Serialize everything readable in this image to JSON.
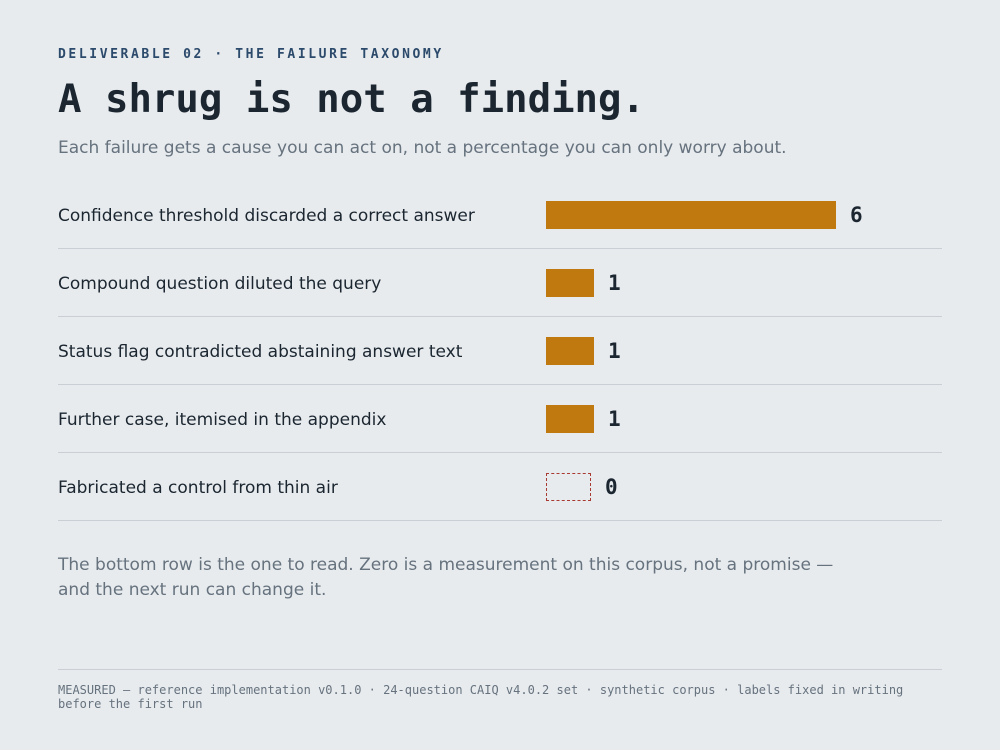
{
  "header": {
    "eyebrow": "DELIVERABLE 02 · THE FAILURE TAXONOMY",
    "title": "A shrug is not a finding.",
    "subtitle": "Each failure gets a cause you can act on, not a percentage you can only worry about."
  },
  "chart_data": {
    "type": "bar",
    "orientation": "horizontal",
    "categories": [
      "Confidence threshold discarded a correct answer",
      "Compound question diluted the query",
      "Status flag contradicted abstaining answer text",
      "Further case, itemised in the appendix",
      "Fabricated a control from thin air"
    ],
    "values": [
      6,
      1,
      1,
      1,
      0
    ],
    "xlim": [
      0,
      6
    ],
    "grid": false,
    "colors": {
      "bar": "#c0790f",
      "zero_outline": "#a83a32"
    }
  },
  "note": "The bottom row is the one to read. Zero is a measurement on this corpus, not a promise — and the next run can change it.",
  "footer": "MEASURED — reference implementation v0.1.0 · 24-question CAIQ v4.0.2 set · synthetic corpus · labels fixed in writing before the first run"
}
